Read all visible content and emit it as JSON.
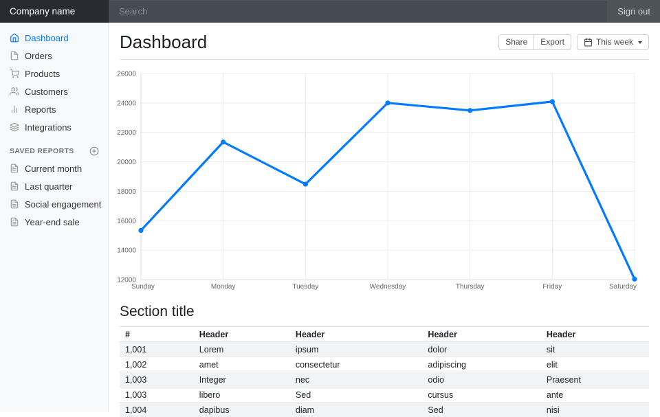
{
  "colors": {
    "accent": "#007bff",
    "navbar_bg": "#343a40",
    "brand_bg": "#282c31",
    "sidebar_bg": "#f8f9fa",
    "stripe": "#f2f3f4",
    "border": "#dee2e6",
    "grid": "#ececec",
    "axis": "#dcdcdc",
    "tick_text": "#666666",
    "icon_gray": "#999999"
  },
  "navbar": {
    "brand": "Company name",
    "search_placeholder": "Search",
    "search_value": "",
    "signout": "Sign out"
  },
  "sidebar": {
    "items": [
      {
        "label": "Dashboard",
        "icon": "home-icon",
        "active": true
      },
      {
        "label": "Orders",
        "icon": "file-icon",
        "active": false
      },
      {
        "label": "Products",
        "icon": "shopping-cart-icon",
        "active": false
      },
      {
        "label": "Customers",
        "icon": "users-icon",
        "active": false
      },
      {
        "label": "Reports",
        "icon": "bar-chart-icon",
        "active": false
      },
      {
        "label": "Integrations",
        "icon": "layers-icon",
        "active": false
      }
    ],
    "saved_reports_label": "Saved reports",
    "saved_items": [
      "Current month",
      "Last quarter",
      "Social engagement",
      "Year-end sale"
    ]
  },
  "main": {
    "title": "Dashboard",
    "toolbar": {
      "share": "Share",
      "export": "Export",
      "period": "This week"
    }
  },
  "chart_data": {
    "type": "line",
    "categories": [
      "Sunday",
      "Monday",
      "Tuesday",
      "Wednesday",
      "Thursday",
      "Friday",
      "Saturday"
    ],
    "series": [
      {
        "name": "values",
        "values": [
          15339,
          21345,
          18483,
          24003,
          23489,
          24092,
          12034
        ]
      }
    ],
    "title": "",
    "xlabel": "",
    "ylabel": "",
    "ylim": [
      12000,
      26000
    ],
    "ytick_step": 2000,
    "grid": true,
    "legend": false,
    "line_color": "#007bff",
    "point_color": "#007bff",
    "fill": false
  },
  "section": {
    "title": "Section title"
  },
  "table": {
    "headers": [
      "#",
      "Header",
      "Header",
      "Header",
      "Header"
    ],
    "col_widths": [
      "14%",
      "18.2%",
      "25%",
      "22.4%",
      "20.4%"
    ],
    "rows": [
      [
        "1,001",
        "Lorem",
        "ipsum",
        "dolor",
        "sit"
      ],
      [
        "1,002",
        "amet",
        "consectetur",
        "adipiscing",
        "elit"
      ],
      [
        "1,003",
        "Integer",
        "nec",
        "odio",
        "Praesent"
      ],
      [
        "1,003",
        "libero",
        "Sed",
        "cursus",
        "ante"
      ],
      [
        "1,004",
        "dapibus",
        "diam",
        "Sed",
        "nisi"
      ]
    ]
  }
}
